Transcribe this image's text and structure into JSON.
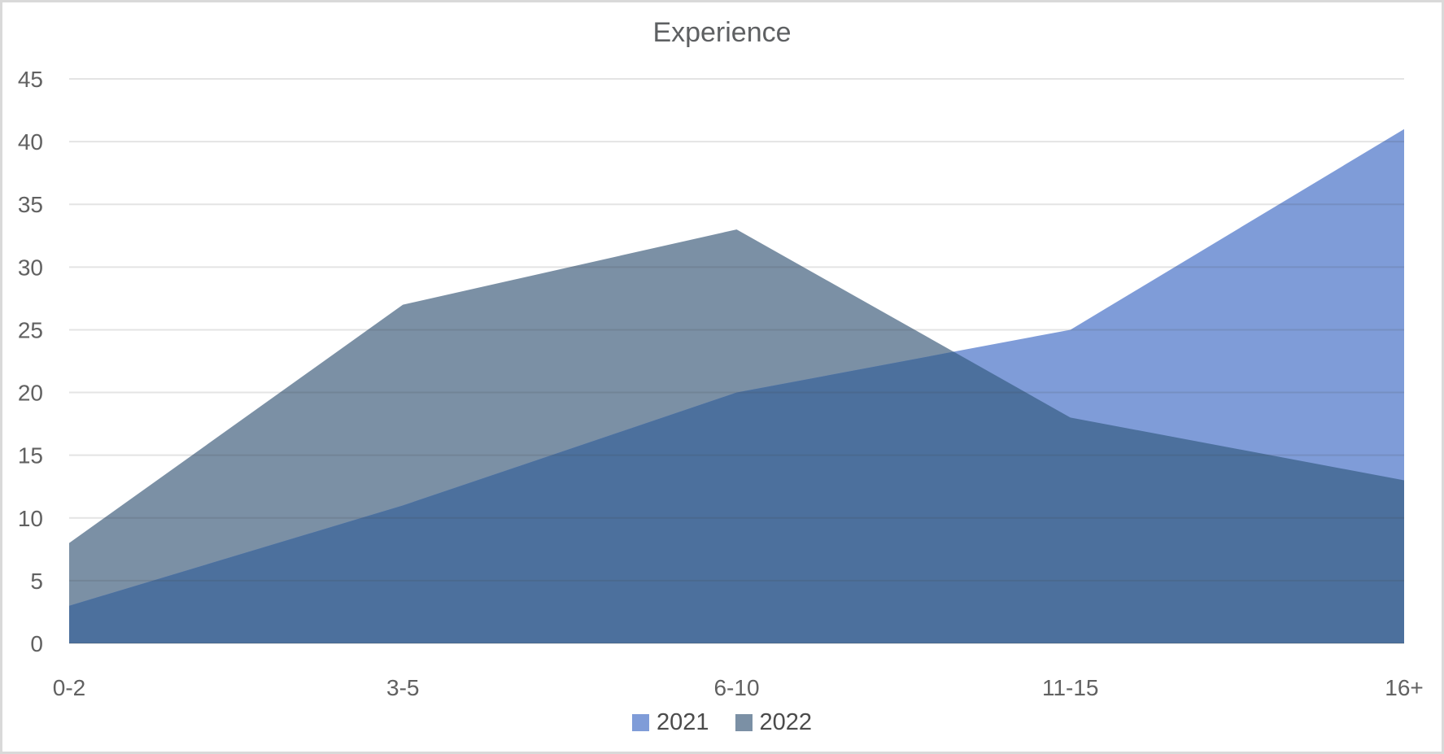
{
  "frame": {
    "background": "#ffffff",
    "border_color": "#d9d9d9"
  },
  "chart_data": {
    "type": "area",
    "title": "Experience",
    "categories": [
      "0-2",
      "3-5",
      "6-10",
      "11-15",
      "16+"
    ],
    "series": [
      {
        "name": "2021",
        "values": [
          3,
          11,
          20,
          25,
          41
        ],
        "color": "#7f9cd8"
      },
      {
        "name": "2022",
        "values": [
          8,
          27,
          33,
          18,
          13
        ],
        "color": "#7b90a5"
      }
    ],
    "overlap_color": "#4c709d",
    "xlabel": "",
    "ylabel": "",
    "ylim": [
      0,
      45
    ],
    "yticks": [
      0,
      5,
      10,
      15,
      20,
      25,
      30,
      35,
      40,
      45
    ],
    "grid": "horizontal-only",
    "legend_position": "bottom-center",
    "colors": {
      "title_text": "#5e6062",
      "axis_text": "#616161",
      "legend_text": "#4b4b4b",
      "gridline_on_white": "#e2e2e2"
    }
  }
}
